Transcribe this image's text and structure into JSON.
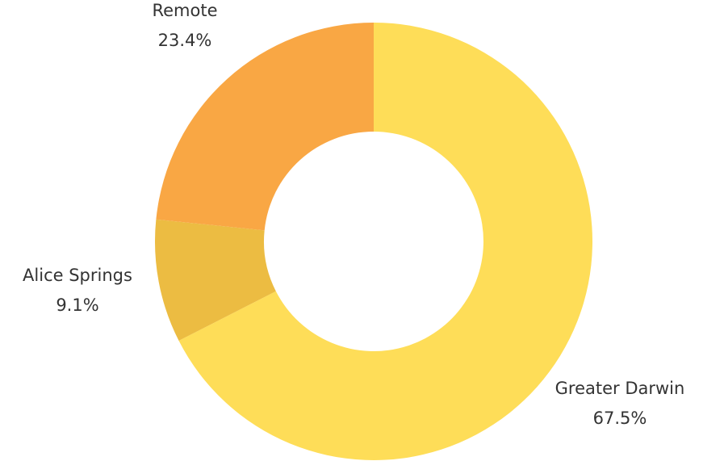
{
  "chart_data": {
    "type": "pie",
    "variant": "donut",
    "title": "",
    "slices": [
      {
        "label": "Greater Darwin",
        "value": 67.5,
        "display": "67.5%",
        "color": "#fedd58"
      },
      {
        "label": "Alice Springs",
        "value": 9.1,
        "display": "9.1%",
        "color": "#ecbc42"
      },
      {
        "label": "Remote",
        "value": 23.4,
        "display": "23.4%",
        "color": "#f9a744"
      }
    ],
    "start": "top",
    "direction": "clockwise",
    "legend": "none"
  }
}
